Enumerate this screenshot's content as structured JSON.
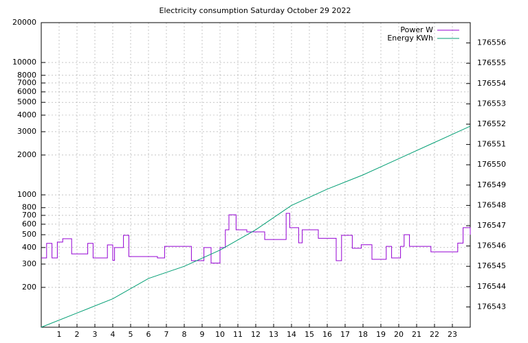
{
  "chart_data": {
    "type": "line",
    "title": "Electricity consumption Saturday October 29 2022",
    "xlim": [
      0,
      24
    ],
    "xticks": [
      1,
      2,
      3,
      4,
      5,
      6,
      7,
      8,
      9,
      10,
      11,
      12,
      13,
      14,
      15,
      16,
      17,
      18,
      19,
      20,
      21,
      22,
      23
    ],
    "ylim": [
      100,
      20000
    ],
    "log_scale": true,
    "yticks": [
      200,
      300,
      400,
      500,
      600,
      700,
      800,
      1000,
      2000,
      3000,
      4000,
      5000,
      6000,
      7000,
      8000,
      10000,
      20000
    ],
    "y2lim": [
      176542,
      176557
    ],
    "y2ticks": [
      176543,
      176544,
      176545,
      176546,
      176547,
      176548,
      176549,
      176550,
      176551,
      176552,
      176553,
      176554,
      176555,
      176556
    ],
    "grid": true,
    "legend": "top-right",
    "step": "post",
    "series": [
      {
        "name": "Power W",
        "color": "#9400d3",
        "x": [
          0,
          0.3,
          0.6,
          0.9,
          1.2,
          1.7,
          2.5,
          2.6,
          2.9,
          3.7,
          4.0,
          4.1,
          4.6,
          4.9,
          6.5,
          6.9,
          8.4,
          9.1,
          9.5,
          10.0,
          10.3,
          10.5,
          10.9,
          11.5,
          12.5,
          13.7,
          13.9,
          14.4,
          14.6,
          15.5,
          16.5,
          16.8,
          17.4,
          17.9,
          18.5,
          19.3,
          19.6,
          20.1,
          20.3,
          20.6,
          21.8,
          23.3,
          23.6,
          24
        ],
        "values": [
          334,
          430,
          334,
          440,
          466,
          358,
          358,
          430,
          334,
          419,
          320,
          400,
          495,
          342,
          334,
          408,
          318,
          400,
          305,
          400,
          544,
          707,
          544,
          525,
          460,
          725,
          565,
          434,
          544,
          470,
          318,
          495,
          395,
          420,
          326,
          408,
          334,
          408,
          500,
          408,
          371,
          432,
          565,
          500
        ]
      },
      {
        "name": "Energy KWh",
        "color": "#009e73",
        "axis": "y2",
        "x": [
          0,
          2,
          4,
          6,
          8,
          10,
          12,
          14,
          16,
          18,
          20,
          22,
          24
        ],
        "values": [
          176542.0,
          176542.7,
          176543.4,
          176544.4,
          176545.0,
          176545.8,
          176546.8,
          176548.0,
          176548.8,
          176549.5,
          176550.3,
          176551.1,
          176551.9
        ]
      }
    ]
  }
}
